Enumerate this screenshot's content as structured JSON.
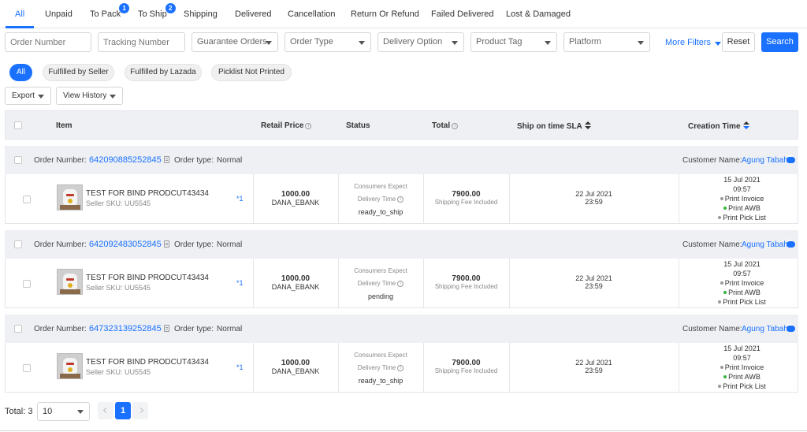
{
  "tabs": [
    {
      "label": "All"
    },
    {
      "label": "Unpaid"
    },
    {
      "label": "To Pack",
      "badge": "1"
    },
    {
      "label": "To Ship",
      "badge": "2"
    },
    {
      "label": "Shipping"
    },
    {
      "label": "Delivered"
    },
    {
      "label": "Cancellation"
    },
    {
      "label": "Return Or Refund"
    },
    {
      "label": "Failed Delivered"
    },
    {
      "label": "Lost & Damaged"
    }
  ],
  "filters": {
    "order_number_placeholder": "Order Number",
    "tracking_number_placeholder": "Tracking Number",
    "guarantee_orders": "Guarantee Orders",
    "order_type": "Order Type",
    "delivery_option": "Delivery Option",
    "product_tag": "Product Tag",
    "platform": "Platform",
    "more_filters": "More Filters",
    "reset": "Reset",
    "search": "Search"
  },
  "chips": [
    "All",
    "Fulfilled by Seller",
    "Fulfilled by Lazada",
    "Picklist Not Printed"
  ],
  "actions": {
    "export": "Export",
    "view_history": "View History"
  },
  "table": {
    "headers": {
      "item": "Item",
      "retail_price": "Retail Price",
      "status": "Status",
      "total": "Total",
      "ship_sla": "Ship on time SLA",
      "creation_time": "Creation Time"
    }
  },
  "order_labels": {
    "order_number": "Order Number:",
    "order_type": "Order type:",
    "customer_name": "Customer Name:",
    "consumers_expect": "Consumers Expect",
    "delivery_time": "Delivery Time",
    "shipping_fee_included": "Shipping Fee Included",
    "print_invoice": "Print Invoice",
    "print_awb": "Print AWB",
    "print_pick_list": "Print Pick List"
  },
  "orders": [
    {
      "order_number": "642090885252845",
      "order_type": "Normal",
      "customer_name": "Agung Tabah",
      "product_name": "TEST FOR BIND PRODCUT43434",
      "seller_sku": "Seller SKU: UU5545",
      "qty": "*1",
      "retail_price": "1000.00",
      "payment": "DANA_EBANK",
      "status": "ready_to_ship",
      "total": "7900.00",
      "sla_date": "22 Jul 2021",
      "sla_time": "23:59",
      "created_date": "15 Jul 2021",
      "created_time": "09:57"
    },
    {
      "order_number": "642092483052845",
      "order_type": "Normal",
      "customer_name": "Agung Tabah",
      "product_name": "TEST FOR BIND PRODCUT43434",
      "seller_sku": "Seller SKU: UU5545",
      "qty": "*1",
      "retail_price": "1000.00",
      "payment": "DANA_EBANK",
      "status": "pending",
      "total": "7900.00",
      "sla_date": "22 Jul 2021",
      "sla_time": "23:59",
      "created_date": "15 Jul 2021",
      "created_time": "09:57"
    },
    {
      "order_number": "647323139252845",
      "order_type": "Normal",
      "customer_name": "Agung Tabah",
      "product_name": "TEST FOR BIND PRODCUT43434",
      "seller_sku": "Seller SKU: UU5545",
      "qty": "*1",
      "retail_price": "1000.00",
      "payment": "DANA_EBANK",
      "status": "ready_to_ship",
      "total": "7900.00",
      "sla_date": "22 Jul 2021",
      "sla_time": "23:59",
      "created_date": "15 Jul 2021",
      "created_time": "09:57"
    }
  ],
  "pagination": {
    "total_label": "Total: 3",
    "page_size": "10",
    "current_page": "1"
  },
  "colors": {
    "accent": "#1a71ff",
    "awb_dot": "#32b53a",
    "header_bg": "#eef0f4"
  }
}
